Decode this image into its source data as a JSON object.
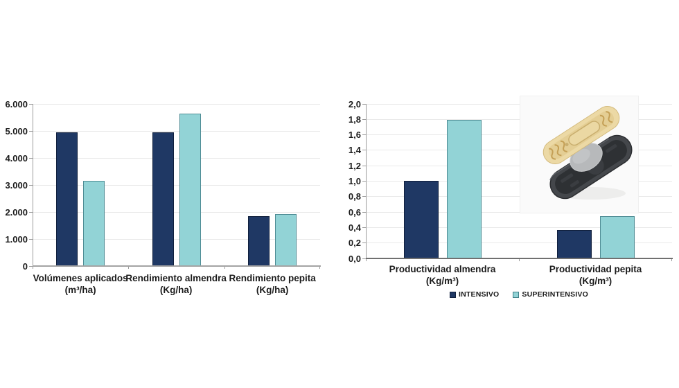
{
  "figure": {
    "background": "#ffffff",
    "description": "Comparativa sistema intensivo vs superintensivo en almendro"
  },
  "colors": {
    "intensivo": "#1f3864",
    "intensivo_border": "#101f3c",
    "superintensivo": "#92d3d6",
    "superintensivo_border": "#4e8c94",
    "gridline": "#e9e9e9",
    "axis_line": "#9b9b9b",
    "baseline_left": "#a3a3a3",
    "baseline_right": "#707070",
    "text": "#1b1b1b"
  },
  "legend": {
    "items": [
      {
        "label": "INTENSIVO",
        "swatch": "#1f3864",
        "swatch_border": "#101f3c"
      },
      {
        "label": "SUPERINTENSIVO",
        "swatch": "#92d3d6",
        "swatch_border": "#3e7e86"
      }
    ]
  },
  "inset_image": {
    "description": "3D render of a two-part elongated capsule: cream ridged upper shell over a dark grey lower tray with a grey core"
  },
  "chart_data": [
    {
      "type": "bar",
      "title": "",
      "categories": [
        "Volúmenes aplicados (m³/ha)",
        "Rendimiento almendra (Kg/ha)",
        "Rendimiento pepita (Kg/ha)"
      ],
      "category_lines": [
        [
          "Volúmenes aplicados",
          "(m³/ha)"
        ],
        [
          "Rendimiento almendra",
          "(Kg/ha)"
        ],
        [
          "Rendimiento pepita",
          "(Kg/ha)"
        ]
      ],
      "series": [
        {
          "name": "INTENSIVO",
          "values": [
            4950,
            4950,
            1850
          ]
        },
        {
          "name": "SUPERINTENSIVO",
          "values": [
            3150,
            5650,
            1920
          ]
        }
      ],
      "ylim": [
        0,
        6000
      ],
      "ytick_labels": [
        "0",
        "1.000",
        "2.000",
        "3.000",
        "4.000",
        "5.000",
        "6.000"
      ],
      "xlabel": "",
      "ylabel": "",
      "grid": true,
      "legend_position": "none"
    },
    {
      "type": "bar",
      "title": "",
      "categories": [
        "Productividad almendra (Kg/m³)",
        "Productividad pepita (Kg/m³)"
      ],
      "category_lines": [
        [
          "Productividad almendra",
          "(Kg/m³)"
        ],
        [
          "Productividad pepita",
          "(Kg/m³)"
        ]
      ],
      "series": [
        {
          "name": "INTENSIVO",
          "values": [
            1.0,
            0.37
          ]
        },
        {
          "name": "SUPERINTENSIVO",
          "values": [
            1.79,
            0.55
          ]
        }
      ],
      "ylim": [
        0,
        2.0
      ],
      "ytick_labels": [
        "0,0",
        "0,2",
        "0,4",
        "0,6",
        "0,8",
        "1,0",
        "1,2",
        "1,4",
        "1,6",
        "1,8",
        "2,0"
      ],
      "xlabel": "",
      "ylabel": "",
      "grid": true,
      "legend_position": "bottom"
    }
  ]
}
